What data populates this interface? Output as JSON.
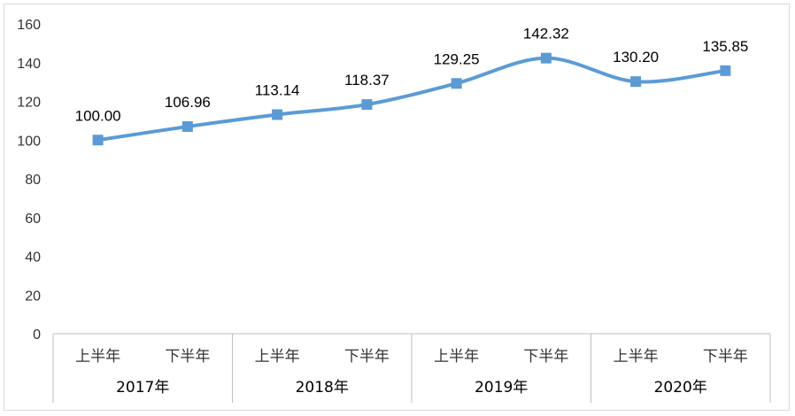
{
  "chart_data": {
    "type": "line",
    "title": "",
    "xlabel": "",
    "ylabel": "",
    "ylim": [
      0,
      160
    ],
    "yticks": [
      0,
      20,
      40,
      60,
      80,
      100,
      120,
      140,
      160
    ],
    "grid": false,
    "categories": [
      "上半年",
      "下半年",
      "上半年",
      "下半年",
      "上半年",
      "下半年",
      "上半年",
      "下半年"
    ],
    "groups": [
      {
        "label": "2017年",
        "span": 2
      },
      {
        "label": "2018年",
        "span": 2
      },
      {
        "label": "2019年",
        "span": 2
      },
      {
        "label": "2020年",
        "span": 2
      }
    ],
    "series": [
      {
        "values": [
          100.0,
          106.96,
          113.14,
          118.37,
          129.25,
          142.32,
          130.2,
          135.85
        ],
        "labels": [
          "100.00",
          "106.96",
          "113.14",
          "118.37",
          "129.25",
          "142.32",
          "130.20",
          "135.85"
        ],
        "color": "#5b9bd5",
        "marker": "square",
        "smooth": true
      }
    ]
  }
}
